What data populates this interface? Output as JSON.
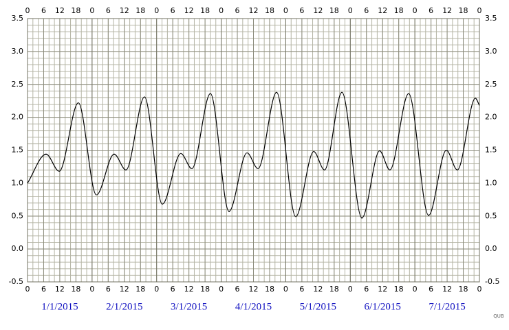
{
  "chart_data": {
    "type": "line",
    "x": [
      0,
      6.9,
      11.8,
      18.9,
      25.6,
      32.2,
      36.6,
      43.5,
      50.1,
      57,
      61.1,
      68,
      74.9,
      81.6,
      85.7,
      92.6,
      99.7,
      106.4,
      110.4,
      116.9,
      124.3,
      130.9,
      134.7,
      141.7,
      149.1,
      155.7,
      159.8,
      166.5,
      168
    ],
    "series": [
      {
        "color": "#000000",
        "values": [
          1.0,
          1.44,
          1.18,
          2.22,
          0.82,
          1.44,
          1.2,
          2.31,
          0.68,
          1.45,
          1.22,
          2.36,
          0.57,
          1.46,
          1.22,
          2.38,
          0.49,
          1.48,
          1.2,
          2.38,
          0.47,
          1.49,
          1.2,
          2.36,
          0.51,
          1.5,
          1.2,
          2.29,
          2.18
        ]
      }
    ],
    "xlim": [
      0,
      168
    ],
    "xticks": [
      {
        "value": 0,
        "label": "0"
      },
      {
        "value": 6,
        "label": "6"
      },
      {
        "value": 12,
        "label": "12"
      },
      {
        "value": 18,
        "label": "18"
      },
      {
        "value": 24,
        "label": "0"
      },
      {
        "value": 30,
        "label": "6"
      },
      {
        "value": 36,
        "label": "12"
      },
      {
        "value": 42,
        "label": "18"
      },
      {
        "value": 48,
        "label": "0"
      },
      {
        "value": 54,
        "label": "6"
      },
      {
        "value": 60,
        "label": "12"
      },
      {
        "value": 66,
        "label": "18"
      },
      {
        "value": 72,
        "label": "0"
      },
      {
        "value": 78,
        "label": "6"
      },
      {
        "value": 84,
        "label": "12"
      },
      {
        "value": 90,
        "label": "18"
      },
      {
        "value": 96,
        "label": "0"
      },
      {
        "value": 102,
        "label": "6"
      },
      {
        "value": 108,
        "label": "12"
      },
      {
        "value": 114,
        "label": "18"
      },
      {
        "value": 120,
        "label": "0"
      },
      {
        "value": 126,
        "label": "6"
      },
      {
        "value": 132,
        "label": "12"
      },
      {
        "value": 138,
        "label": "18"
      },
      {
        "value": 144,
        "label": "0"
      },
      {
        "value": 150,
        "label": "6"
      },
      {
        "value": 156,
        "label": "12"
      },
      {
        "value": 162,
        "label": "18"
      },
      {
        "value": 168,
        "label": "0"
      }
    ],
    "ylim": [
      -0.5,
      3.5
    ],
    "yticks": [
      -0.5,
      {
        "value": 0,
        "label": "0.0"
      },
      0.5,
      {
        "value": 1,
        "label": "1.0"
      },
      1.5,
      {
        "value": 2,
        "label": "2.0"
      },
      2.5,
      {
        "value": 3,
        "label": "3.0"
      },
      3.5
    ],
    "dates": [
      "1/1/2015",
      "2/1/2015",
      "3/1/2015",
      "4/1/2015",
      "5/1/2015",
      "6/1/2015",
      "7/1/2015"
    ],
    "watermark": "QUB",
    "grid": true
  }
}
